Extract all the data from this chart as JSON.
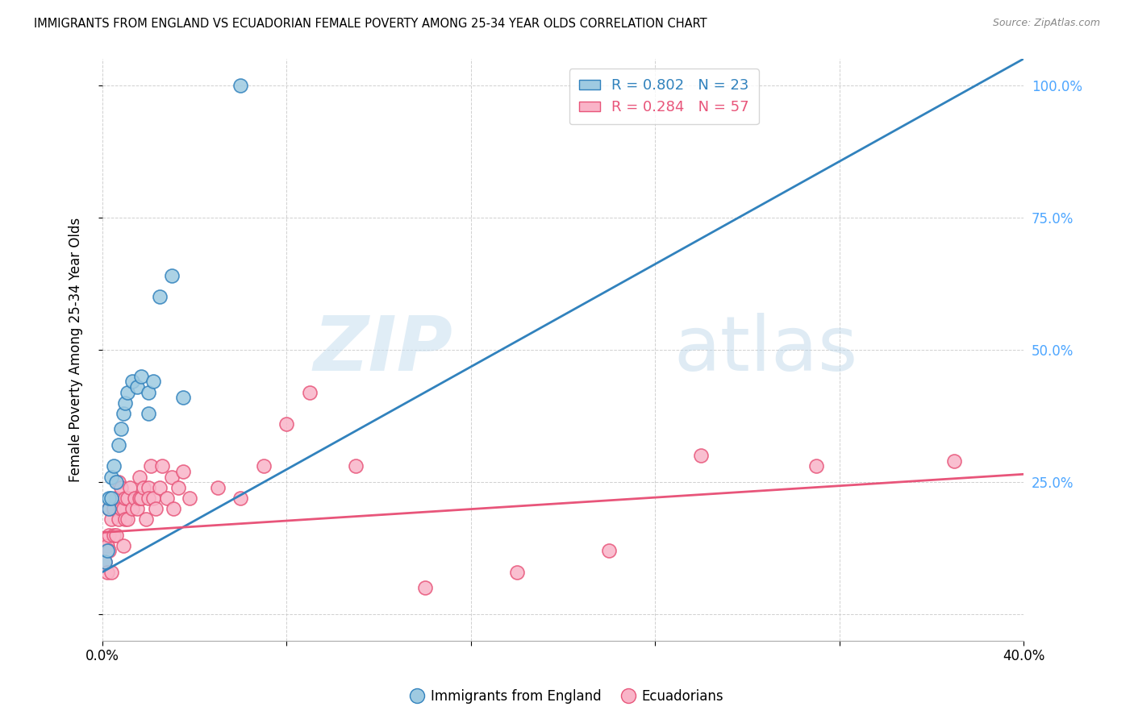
{
  "title": "IMMIGRANTS FROM ENGLAND VS ECUADORIAN FEMALE POVERTY AMONG 25-34 YEAR OLDS CORRELATION CHART",
  "source": "Source: ZipAtlas.com",
  "ylabel": "Female Poverty Among 25-34 Year Olds",
  "xlim": [
    0.0,
    0.4
  ],
  "ylim": [
    -0.05,
    1.05
  ],
  "plot_ylim": [
    0.0,
    1.0
  ],
  "blue_R": 0.802,
  "blue_N": 23,
  "pink_R": 0.284,
  "pink_N": 57,
  "blue_color": "#9ecae1",
  "pink_color": "#f9b4c8",
  "blue_line_color": "#3182bd",
  "pink_line_color": "#e8557a",
  "right_axis_color": "#4da6ff",
  "watermark_zip": "ZIP",
  "watermark_atlas": "atlas",
  "england_x": [
    0.001,
    0.002,
    0.003,
    0.003,
    0.004,
    0.004,
    0.005,
    0.006,
    0.007,
    0.008,
    0.009,
    0.01,
    0.011,
    0.013,
    0.015,
    0.017,
    0.02,
    0.02,
    0.022,
    0.025,
    0.03,
    0.035,
    0.06
  ],
  "england_y": [
    0.1,
    0.12,
    0.2,
    0.22,
    0.22,
    0.26,
    0.28,
    0.25,
    0.32,
    0.35,
    0.38,
    0.4,
    0.42,
    0.44,
    0.43,
    0.45,
    0.38,
    0.42,
    0.44,
    0.6,
    0.64,
    0.41,
    1.0
  ],
  "ecuador_x": [
    0.001,
    0.001,
    0.002,
    0.002,
    0.003,
    0.003,
    0.003,
    0.004,
    0.004,
    0.005,
    0.005,
    0.006,
    0.006,
    0.007,
    0.007,
    0.008,
    0.008,
    0.009,
    0.009,
    0.01,
    0.01,
    0.011,
    0.011,
    0.012,
    0.013,
    0.014,
    0.015,
    0.016,
    0.016,
    0.017,
    0.018,
    0.019,
    0.02,
    0.02,
    0.021,
    0.022,
    0.023,
    0.025,
    0.026,
    0.028,
    0.03,
    0.031,
    0.033,
    0.035,
    0.038,
    0.05,
    0.06,
    0.07,
    0.08,
    0.09,
    0.11,
    0.14,
    0.18,
    0.22,
    0.26,
    0.31,
    0.37
  ],
  "ecuador_y": [
    0.1,
    0.14,
    0.08,
    0.13,
    0.12,
    0.15,
    0.2,
    0.08,
    0.18,
    0.15,
    0.2,
    0.15,
    0.22,
    0.18,
    0.25,
    0.2,
    0.24,
    0.13,
    0.2,
    0.18,
    0.22,
    0.18,
    0.22,
    0.24,
    0.2,
    0.22,
    0.2,
    0.26,
    0.22,
    0.22,
    0.24,
    0.18,
    0.24,
    0.22,
    0.28,
    0.22,
    0.2,
    0.24,
    0.28,
    0.22,
    0.26,
    0.2,
    0.24,
    0.27,
    0.22,
    0.24,
    0.22,
    0.28,
    0.36,
    0.42,
    0.28,
    0.05,
    0.08,
    0.12,
    0.3,
    0.28,
    0.29
  ],
  "blue_regline_x": [
    0.0,
    0.4
  ],
  "blue_regline_y": [
    0.08,
    1.05
  ],
  "pink_regline_x": [
    0.0,
    0.4
  ],
  "pink_regline_y": [
    0.155,
    0.265
  ]
}
